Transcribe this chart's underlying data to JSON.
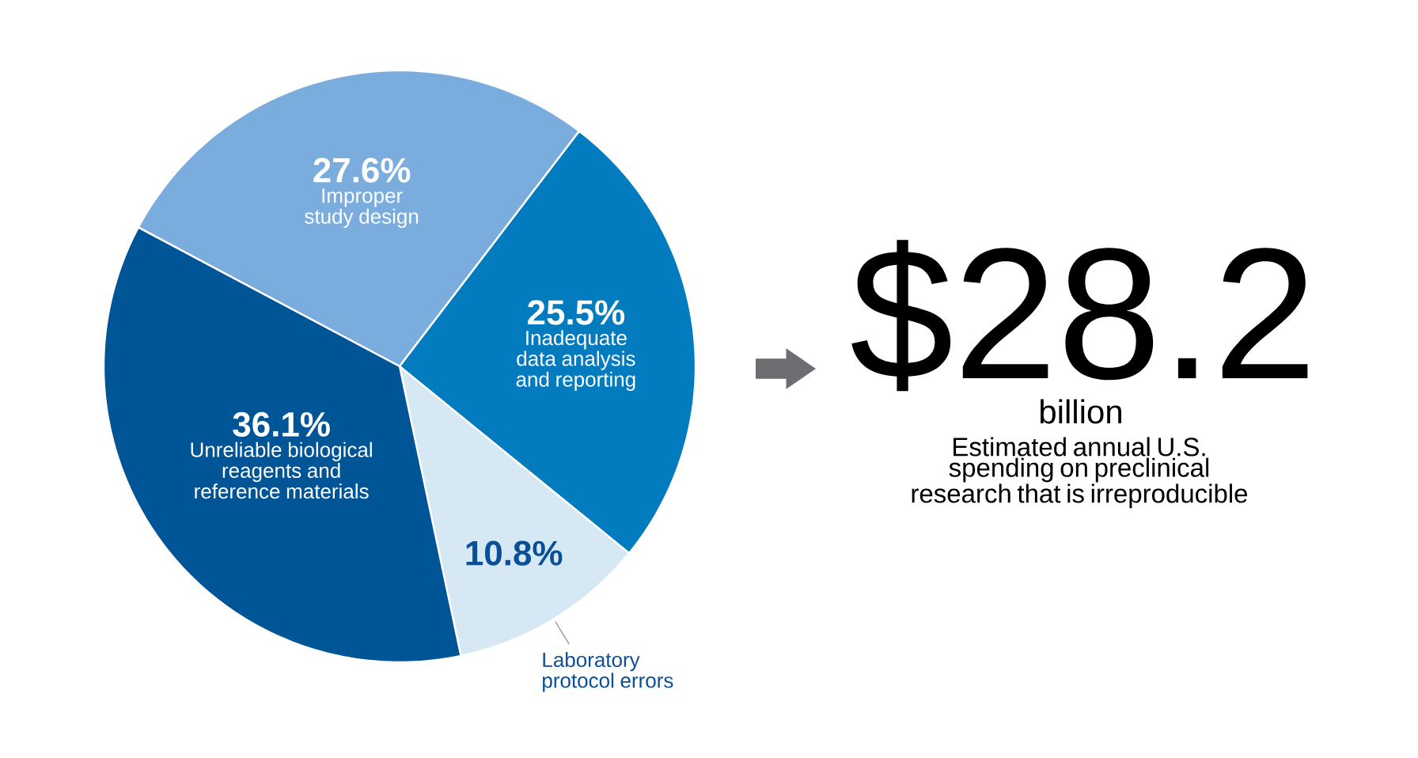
{
  "chart_data": [
    {
      "type": "pie",
      "categories": [
        "Improper study design",
        "Inadequate data analysis and reporting",
        "Laboratory protocol errors",
        "Unreliable biological reagents and reference materials"
      ],
      "values": [
        27.6,
        25.5,
        10.8,
        36.1
      ],
      "colors": [
        "#7aadde",
        "#027bbf",
        "#d6e8f3",
        "#005597"
      ],
      "value_labels": [
        "27.6%",
        "25.5%",
        "10.8%",
        "36.1%"
      ]
    },
    {
      "type": "other",
      "title": "$28.2",
      "subtitle": "billion",
      "annotations": [
        "Estimated annual U.S. spending on preclinical research that is irreproducible"
      ]
    }
  ]
}
